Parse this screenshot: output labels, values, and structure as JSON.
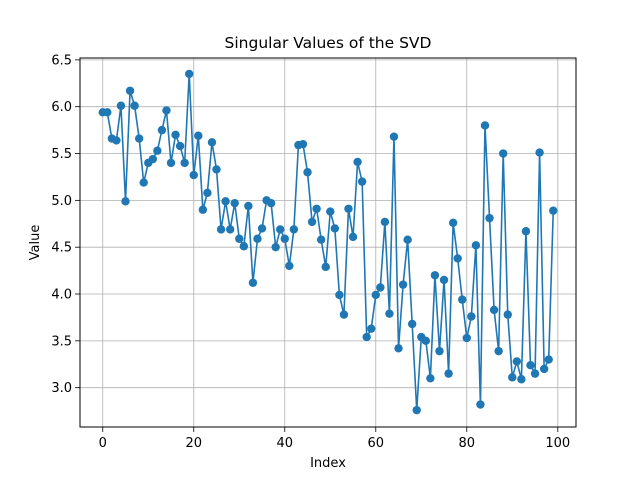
{
  "chart_data": {
    "type": "line",
    "title": "Singular Values of the SVD",
    "xlabel": "Index",
    "ylabel": "Value",
    "xlim": [
      -5,
      104
    ],
    "ylim": [
      2.58,
      6.52
    ],
    "xticks": [
      0,
      20,
      40,
      60,
      80,
      100
    ],
    "xtick_labels": [
      "0",
      "20",
      "40",
      "60",
      "80",
      "100"
    ],
    "yticks": [
      3.0,
      3.5,
      4.0,
      4.5,
      5.0,
      5.5,
      6.0,
      6.5
    ],
    "ytick_labels": [
      "3.0",
      "3.5",
      "4.0",
      "4.5",
      "5.0",
      "5.5",
      "6.0",
      "6.5"
    ],
    "grid": true,
    "marker": "circle",
    "color": "#1f77b4",
    "series": [
      {
        "x": [
          0,
          1,
          2,
          3,
          4,
          5,
          6,
          7,
          8,
          9,
          10,
          11,
          12,
          13,
          14,
          15,
          16,
          17,
          18,
          19,
          20,
          21,
          22,
          23,
          24,
          25,
          26,
          27,
          28,
          29,
          30,
          31,
          32,
          33,
          34,
          35,
          36,
          37,
          38,
          39,
          40,
          41,
          42,
          43,
          44,
          45,
          46,
          47,
          48,
          49,
          50,
          51,
          52,
          53,
          54,
          55,
          56,
          57,
          58,
          59,
          60,
          61,
          62,
          63,
          64,
          65,
          66,
          67,
          68,
          69,
          70,
          71,
          72,
          73,
          74,
          75,
          76,
          77,
          78,
          79,
          80,
          81,
          82,
          83,
          84,
          85,
          86,
          87,
          88,
          89,
          90,
          91,
          92,
          93,
          94,
          95,
          96,
          97,
          98,
          99
        ],
        "y": [
          5.94,
          5.94,
          5.66,
          5.64,
          6.01,
          4.99,
          6.17,
          6.01,
          5.66,
          5.19,
          5.4,
          5.44,
          5.53,
          5.75,
          5.96,
          5.4,
          5.7,
          5.58,
          5.4,
          6.35,
          5.27,
          5.69,
          4.9,
          5.08,
          5.62,
          5.33,
          4.69,
          4.99,
          4.69,
          4.97,
          4.59,
          4.51,
          4.94,
          4.12,
          4.59,
          4.7,
          5.0,
          4.97,
          4.5,
          4.69,
          4.59,
          4.3,
          4.69,
          5.59,
          5.6,
          5.3,
          4.77,
          4.91,
          4.58,
          4.29,
          4.88,
          4.7,
          3.99,
          3.78,
          4.91,
          4.61,
          5.41,
          5.2,
          3.54,
          3.63,
          3.99,
          4.07,
          4.77,
          3.79,
          5.68,
          3.42,
          4.1,
          4.58,
          3.68,
          2.76,
          3.54,
          3.5,
          3.1,
          4.2,
          3.39,
          4.15,
          3.15,
          4.76,
          4.38,
          3.94,
          3.53,
          3.76,
          4.52,
          2.82,
          5.8,
          4.81,
          3.83,
          3.39,
          5.5,
          3.78,
          3.11,
          3.28,
          3.09,
          4.67,
          3.24,
          3.15,
          5.51,
          3.2,
          3.3,
          4.89
        ]
      }
    ]
  }
}
